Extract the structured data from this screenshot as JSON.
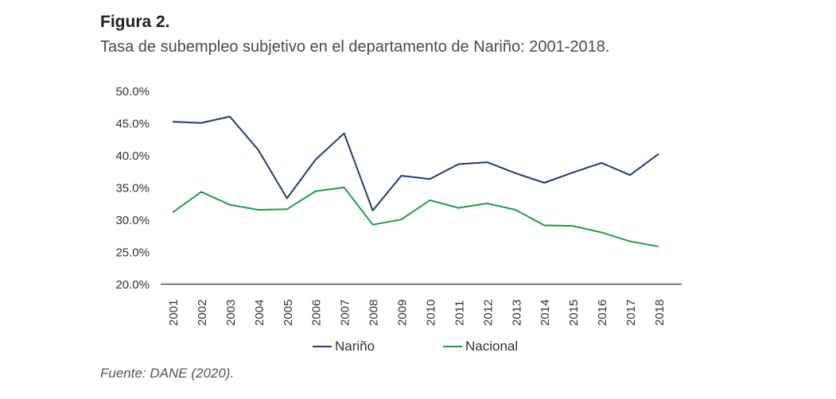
{
  "figure": {
    "label": "Figura 2.",
    "title": "Tasa de subempleo subjetivo en el departamento de Nariño: 2001-2018.",
    "source": "Fuente: DANE (2020)."
  },
  "colors": {
    "narino": "#27357e",
    "nacional": "#1f9a4c",
    "axis": "#333333"
  },
  "chart_data": {
    "type": "line",
    "title": "",
    "xlabel": "",
    "ylabel": "",
    "x": [
      "2001",
      "2002",
      "2003",
      "2004",
      "2005",
      "2006",
      "2007",
      "2008",
      "2009",
      "2010",
      "2011",
      "2012",
      "2013",
      "2014",
      "2015",
      "2016",
      "2017",
      "2018"
    ],
    "ylim": [
      20,
      50
    ],
    "yticks": [
      "20.0%",
      "25.0%",
      "30.0%",
      "35.0%",
      "40.0%",
      "45.0%",
      "50.0%"
    ],
    "ytick_values": [
      20,
      25,
      30,
      35,
      40,
      45,
      50
    ],
    "grid": false,
    "legend_position": "bottom",
    "series": [
      {
        "name": "Nariño",
        "values": [
          45.3,
          45.1,
          46.1,
          40.9,
          33.4,
          39.4,
          43.5,
          31.5,
          36.9,
          36.4,
          38.7,
          39.0,
          37.3,
          35.8,
          37.4,
          38.9,
          37.0,
          40.3
        ]
      },
      {
        "name": "Nacional",
        "values": [
          31.2,
          34.4,
          32.4,
          31.6,
          31.7,
          34.5,
          35.1,
          29.3,
          30.1,
          33.1,
          31.9,
          32.6,
          31.6,
          29.2,
          29.1,
          28.1,
          26.7,
          25.9
        ]
      }
    ]
  }
}
